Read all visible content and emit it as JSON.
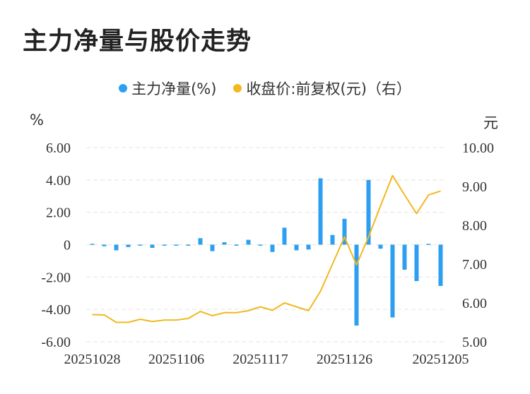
{
  "title": "主力净量与股价走势",
  "legend": {
    "left_label": "主力净量(%)",
    "right_label": "收盘价:前复权(元)（右）"
  },
  "units": {
    "left": "%",
    "right": "元"
  },
  "colors": {
    "bar": "#2e9ff0",
    "line": "#f2b81f",
    "grid": "#e3e3e3",
    "text": "#333333"
  },
  "chart_data": {
    "type": "bar+line",
    "title": "主力净量与股价走势",
    "x_tick_labels": [
      "20251028",
      "20251106",
      "20251117",
      "20251126",
      "20251205"
    ],
    "x_tick_index": [
      0,
      7,
      14,
      21,
      29
    ],
    "left_axis": {
      "ylim": [
        -6,
        6
      ],
      "ticks": [
        6,
        4,
        2,
        0,
        -2,
        -4,
        -6
      ],
      "tick_labels": [
        "6.00",
        "4.00",
        "2.00",
        "0",
        "-2.00",
        "-4.00",
        "-6.00"
      ]
    },
    "right_axis": {
      "ylim": [
        5,
        10
      ],
      "ticks": [
        10,
        9,
        8,
        7,
        6,
        5
      ],
      "tick_labels": [
        "10.00",
        "9.00",
        "8.00",
        "7.00",
        "6.00",
        "5.00"
      ]
    },
    "series": [
      {
        "name": "主力净量(%)",
        "type": "bar",
        "axis": "left",
        "values": [
          0.05,
          -0.1,
          -0.35,
          -0.15,
          -0.02,
          -0.2,
          -0.05,
          -0.02,
          -0.02,
          0.4,
          -0.4,
          0.15,
          -0.05,
          0.3,
          -0.05,
          -0.45,
          1.05,
          -0.35,
          -0.3,
          4.1,
          0.6,
          1.6,
          -5.0,
          4.0,
          -0.25,
          -4.5,
          -1.55,
          -2.25,
          0.05,
          -2.55
        ]
      },
      {
        "name": "收盘价:前复权(元)（右）",
        "type": "line",
        "axis": "right",
        "values": [
          5.7,
          5.69,
          5.5,
          5.5,
          5.58,
          5.52,
          5.56,
          5.56,
          5.6,
          5.78,
          5.67,
          5.75,
          5.75,
          5.8,
          5.9,
          5.81,
          6.0,
          5.9,
          5.8,
          6.3,
          7.0,
          7.7,
          6.98,
          7.7,
          8.5,
          9.28,
          8.78,
          8.3,
          8.78,
          8.88
        ]
      }
    ],
    "grid": true,
    "legend_position": "top-center"
  }
}
